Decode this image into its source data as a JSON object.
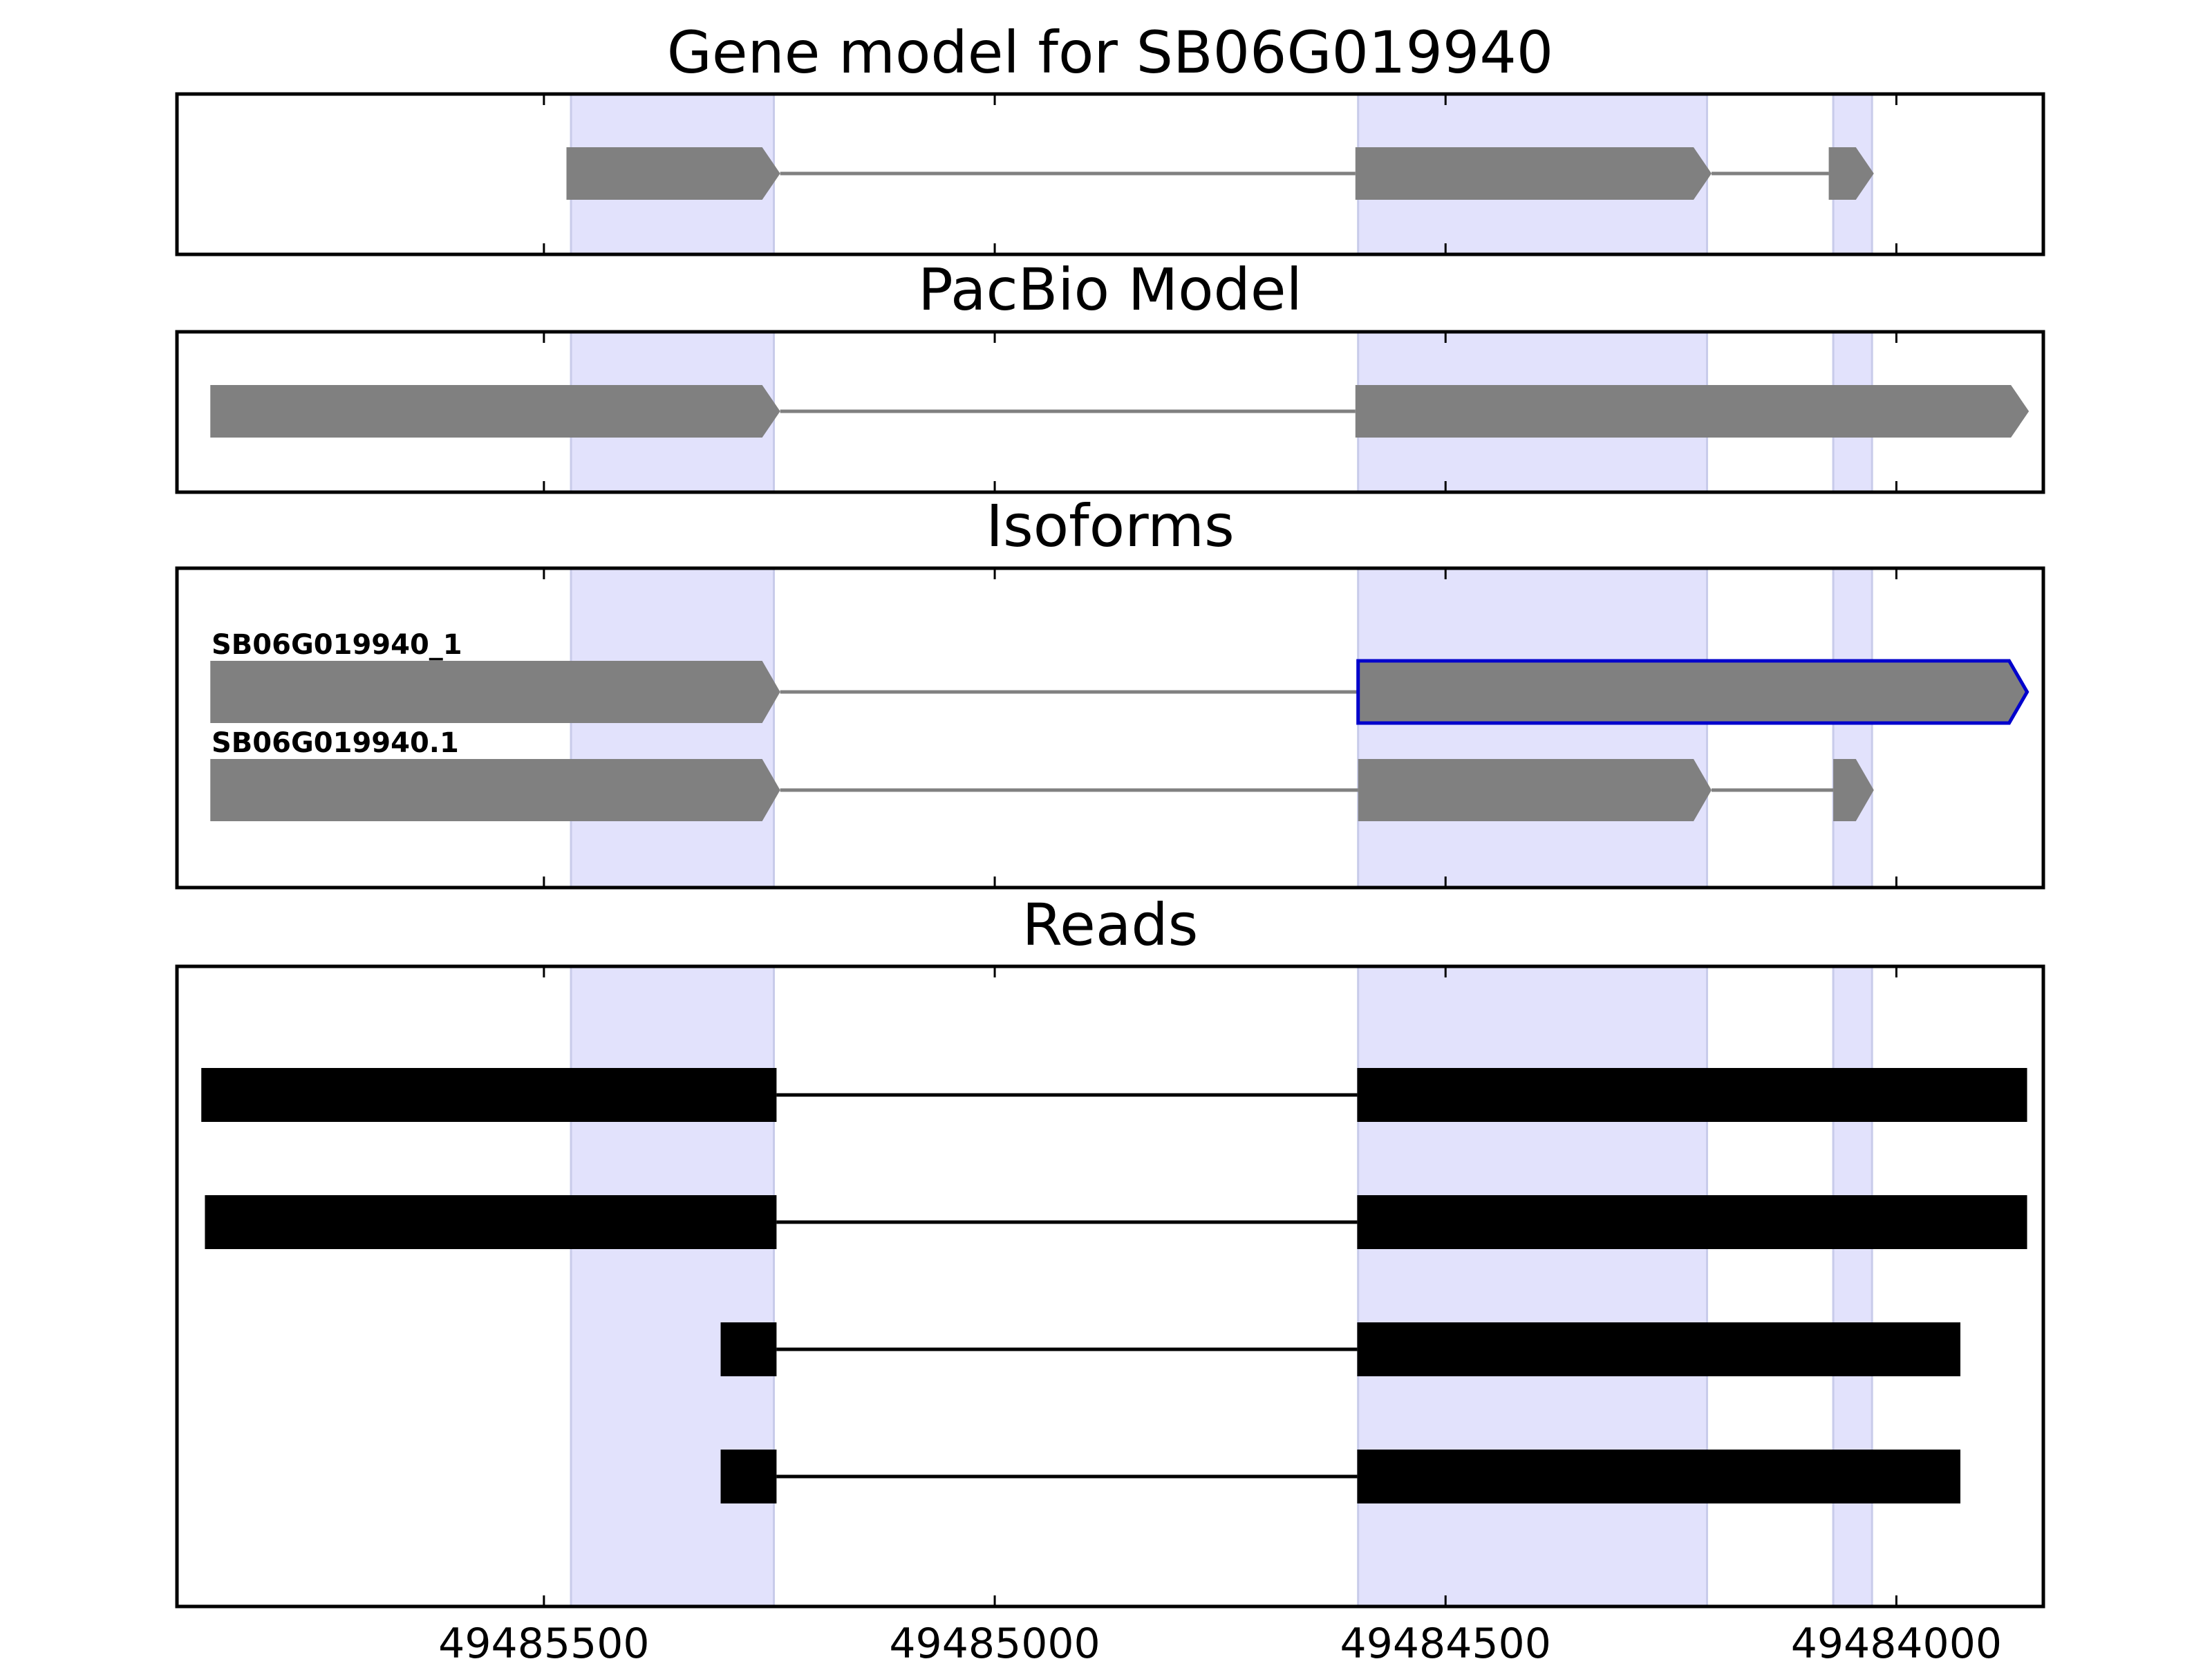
{
  "colors": {
    "exon": "#808080",
    "intron": "#808080",
    "read": "#000000",
    "highlight": "#e2e2fc",
    "highlight_edge": "#c8cbea",
    "selected_outline": "#0000cc",
    "frame": "#000000"
  },
  "chart_data": {
    "type": "gene-structure",
    "x_axis": {
      "range": [
        49485907,
        49483837
      ],
      "ticks": [
        49485500,
        49485000,
        49484500,
        49484000
      ],
      "tick_labels": [
        "49485500",
        "49485000",
        "49484500",
        "49484000"
      ]
    },
    "highlight_regions": [
      [
        49485470,
        49485245
      ],
      [
        49484597,
        49484210
      ],
      [
        49484070,
        49484027
      ]
    ],
    "panels": [
      {
        "title": "Gene model for SB06G019940",
        "tracks": [
          {
            "exons": [
              [
                49485475,
                49485238
              ],
              [
                49484600,
                49484205
              ],
              [
                49484075,
                49484025
              ]
            ]
          }
        ]
      },
      {
        "title": "PacBio Model",
        "tracks": [
          {
            "exons": [
              [
                49485870,
                49485238
              ],
              [
                49484600,
                49483853
              ]
            ]
          }
        ]
      },
      {
        "title": "Isoforms",
        "tracks": [
          {
            "label": "SB06G019940_1",
            "selected": true,
            "exons": [
              [
                49485870,
                49485238
              ],
              [
                49484597,
                49483855
              ]
            ]
          },
          {
            "label": "SB06G019940.1",
            "selected": false,
            "exons": [
              [
                49485870,
                49485238
              ],
              [
                49484597,
                49484205
              ],
              [
                49484070,
                49484025
              ]
            ]
          }
        ]
      },
      {
        "title": "Reads",
        "tracks": [
          {
            "exons": [
              [
                49485880,
                49485242
              ],
              [
                49484598,
                49483855
              ]
            ]
          },
          {
            "exons": [
              [
                49485876,
                49485242
              ],
              [
                49484598,
                49483855
              ]
            ]
          },
          {
            "exons": [
              [
                49485304,
                49485242
              ],
              [
                49484598,
                49483929
              ]
            ]
          },
          {
            "exons": [
              [
                49485304,
                49485242
              ],
              [
                49484598,
                49483929
              ]
            ]
          }
        ]
      }
    ]
  }
}
